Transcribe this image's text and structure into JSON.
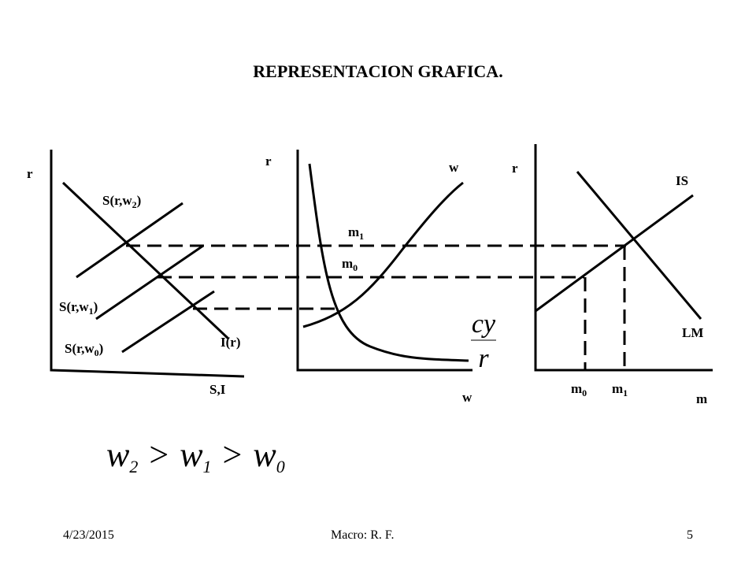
{
  "header": {
    "title": "REPRESENTACION GRAFICA."
  },
  "panel1": {
    "y_label": "r",
    "x_label": "S,I",
    "investment": "I(r)",
    "savings": [
      {
        "base": "S(r,w",
        "sub": "2",
        "tail": ")"
      },
      {
        "base": "S(r,w",
        "sub": "1",
        "tail": ")"
      },
      {
        "base": "S(r,w",
        "sub": "0",
        "tail": ")"
      }
    ]
  },
  "panel2": {
    "y_label": "r",
    "x_label": "w",
    "curve_label": "w",
    "m1": {
      "base": "m",
      "sub": "1"
    },
    "m0": {
      "base": "m",
      "sub": "0"
    },
    "fraction": {
      "numerator": "cy",
      "denominator": "r"
    }
  },
  "panel3": {
    "y_label": "r",
    "x_label": "m",
    "is_label": "IS",
    "lm_label": "LM",
    "m0": {
      "base": "m",
      "sub": "0"
    },
    "m1": {
      "base": "m",
      "sub": "1"
    }
  },
  "inequality": [
    {
      "base": "w",
      "sub": "2"
    },
    {
      "op": ">"
    },
    {
      "base": "w",
      "sub": "1"
    },
    {
      "op": ">"
    },
    {
      "base": "w",
      "sub": "0"
    }
  ],
  "footer": {
    "date": "4/23/2015",
    "center": "Macro: R. F.",
    "page": "5"
  }
}
